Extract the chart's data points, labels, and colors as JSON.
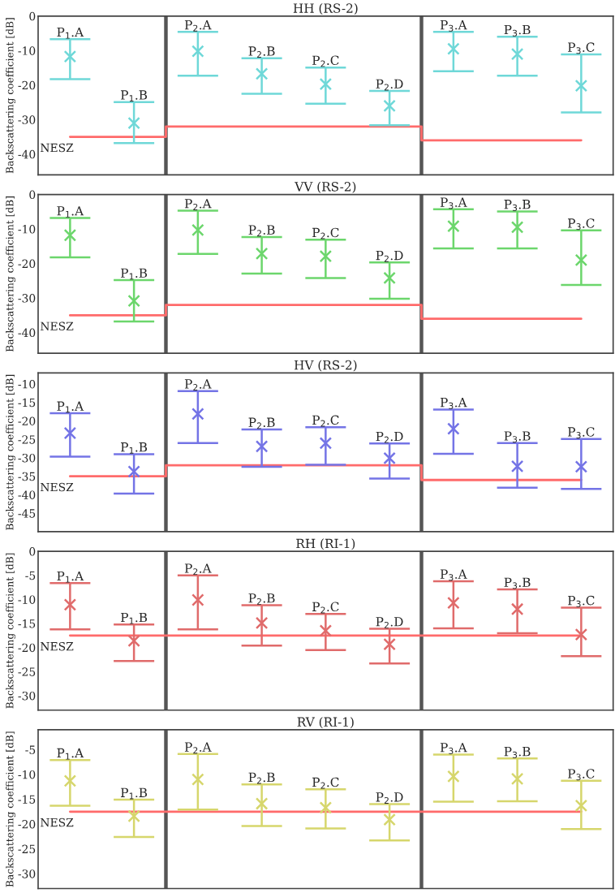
{
  "chart_data": [
    {
      "type": "scatter",
      "title": "HH (RS-2)",
      "ylabel": "Backscattering coefficient [dB]",
      "categories": [
        "P$_{1}$.A",
        "P$_{1}$.B",
        "P$_{2}$.A",
        "P$_{2}$.B",
        "P$_{2}$.C",
        "P$_{2}$.D",
        "P$_{3}$.A",
        "P$_{3}$.B",
        "P$_{3}$.C"
      ],
      "ylim": [
        -46,
        0
      ],
      "yticks": [
        0,
        -10,
        -20,
        -30,
        -40
      ],
      "tick_labels": "y",
      "grid": false,
      "series": [
        {
          "marker": "cross",
          "color": "#6fd8d8",
          "values": [
            -11.7,
            -31,
            -10.2,
            -16.7,
            -19.7,
            -26,
            -9.5,
            -11,
            -20.2
          ],
          "errors": [
            [
              -18.3,
              -6.7
            ],
            [
              -36.8,
              -24.9
            ],
            [
              -17.3,
              -4.6
            ],
            [
              -22.5,
              -12.2
            ],
            [
              -25.4,
              -14.9
            ],
            [
              -31.6,
              -21.7
            ],
            [
              -16,
              -4.6
            ],
            [
              -17.3,
              -6
            ],
            [
              -27.9,
              -11.1
            ]
          ]
        },
        {
          "type": "step",
          "name": "NESZ",
          "color": "#ff6b6b",
          "values": [
            -35,
            -35,
            -32,
            -32,
            -32,
            -32,
            -36,
            -36,
            -36
          ]
        }
      ]
    },
    {
      "type": "scatter",
      "title": "VV (RS-2)",
      "ylabel": "Backscattering coefficient [dB]",
      "categories": [
        "P$_{1}$.A",
        "P$_{1}$.B",
        "P$_{2}$.A",
        "P$_{2}$.B",
        "P$_{2}$.C",
        "P$_{2}$.D",
        "P$_{3}$.A",
        "P$_{3}$.B",
        "P$_{3}$.C"
      ],
      "ylim": [
        -46,
        0
      ],
      "yticks": [
        0,
        -10,
        -20,
        -30,
        -40
      ],
      "tick_labels": "y",
      "grid": false,
      "series": [
        {
          "marker": "cross",
          "color": "#6cd66c",
          "values": [
            -11.8,
            -30.8,
            -10.3,
            -17.1,
            -17.9,
            -24.2,
            -9.2,
            -9.5,
            -19
          ],
          "errors": [
            [
              -18.2,
              -6.8
            ],
            [
              -36.8,
              -24.8
            ],
            [
              -17.2,
              -4.7
            ],
            [
              -22.9,
              -12.3
            ],
            [
              -24.2,
              -13.1
            ],
            [
              -30.2,
              -19.7
            ],
            [
              -15.6,
              -4.3
            ],
            [
              -15.6,
              -4.9
            ],
            [
              -26.2,
              -10.4
            ]
          ]
        },
        {
          "type": "step",
          "name": "NESZ",
          "color": "#ff6b6b",
          "values": [
            -35,
            -35,
            -32,
            -32,
            -32,
            -32,
            -36,
            -36,
            -36
          ]
        }
      ]
    },
    {
      "type": "scatter",
      "title": "HV (RS-2)",
      "ylabel": "Backscattering coefficient [dB]",
      "categories": [
        "P$_{1}$.A",
        "P$_{1}$.B",
        "P$_{2}$.A",
        "P$_{2}$.B",
        "P$_{2}$.C",
        "P$_{2}$.D",
        "P$_{3}$.A",
        "P$_{3}$.B",
        "P$_{3}$.C"
      ],
      "ylim": [
        -50,
        -7
      ],
      "yticks": [
        -10,
        -15,
        -20,
        -25,
        -30,
        -35,
        -40,
        -45
      ],
      "tick_labels": "y",
      "grid": false,
      "series": [
        {
          "marker": "cross",
          "color": "#7474e6",
          "values": [
            -23.3,
            -33.7,
            -18.1,
            -26.9,
            -26,
            -30.1,
            -22.1,
            -32.3,
            -32.4
          ],
          "errors": [
            [
              -29.7,
              -17.9
            ],
            [
              -39.7,
              -29
            ],
            [
              -26,
              -11.9
            ],
            [
              -32.4,
              -22.3
            ],
            [
              -31.9,
              -21.7
            ],
            [
              -35.6,
              -26.1
            ],
            [
              -28.9,
              -16.9
            ],
            [
              -38.1,
              -26
            ],
            [
              -38.4,
              -24.9
            ]
          ]
        },
        {
          "type": "step",
          "name": "NESZ",
          "color": "#ff6b6b",
          "values": [
            -35,
            -35,
            -32,
            -32,
            -32,
            -32,
            -36,
            -36,
            -36
          ]
        }
      ]
    },
    {
      "type": "scatter",
      "title": "RH (RI-1)",
      "ylabel": "Backscattering coefficient [dB]",
      "categories": [
        "P$_{1}$.A",
        "P$_{1}$.B",
        "P$_{2}$.A",
        "P$_{2}$.B",
        "P$_{2}$.C",
        "P$_{2}$.D",
        "P$_{3}$.A",
        "P$_{3}$.B",
        "P$_{3}$.C"
      ],
      "ylim": [
        -33,
        0
      ],
      "yticks": [
        0,
        -5,
        -10,
        -15,
        -20,
        -25,
        -30
      ],
      "tick_labels": "y",
      "grid": false,
      "series": [
        {
          "marker": "cross",
          "color": "#e06b6b",
          "values": [
            -11.1,
            -18.6,
            -10.1,
            -14.9,
            -16.5,
            -19.3,
            -10.7,
            -12,
            -17.3
          ],
          "errors": [
            [
              -16.2,
              -6.6
            ],
            [
              -22.8,
              -15.2
            ],
            [
              -16.2,
              -5
            ],
            [
              -19.6,
              -11.2
            ],
            [
              -20.5,
              -13
            ],
            [
              -23.3,
              -16.1
            ],
            [
              -16,
              -6.2
            ],
            [
              -17,
              -7.9
            ],
            [
              -21.8,
              -11.7
            ]
          ]
        },
        {
          "type": "step",
          "name": "NESZ",
          "color": "#ff6b6b",
          "values": [
            -17.5,
            -17.5,
            -17.5,
            -17.5,
            -17.5,
            -17.5,
            -17.5,
            -17.5,
            -17.5
          ]
        }
      ]
    },
    {
      "type": "scatter",
      "title": "RV (RI-1)",
      "ylabel": "Backscattering coefficient [dB]",
      "categories": [
        "P$_{1}$.A",
        "P$_{1}$.B",
        "P$_{2}$.A",
        "P$_{2}$.B",
        "P$_{2}$.C",
        "P$_{2}$.D",
        "P$_{3}$.A",
        "P$_{3}$.B",
        "P$_{3}$.C"
      ],
      "ylim": [
        -33,
        -1
      ],
      "yticks": [
        -5,
        -10,
        -15,
        -20,
        -25,
        -30
      ],
      "tick_labels": "y",
      "grid": false,
      "series": [
        {
          "marker": "cross",
          "color": "#d6d66c",
          "values": [
            -11.3,
            -18.4,
            -11,
            -15.9,
            -16.7,
            -19.1,
            -10.4,
            -10.9,
            -16.3
          ],
          "errors": [
            [
              -16.3,
              -7.1
            ],
            [
              -22.6,
              -15.1
            ],
            [
              -17.1,
              -5.9
            ],
            [
              -20.4,
              -12
            ],
            [
              -20.9,
              -13
            ],
            [
              -23.3,
              -16
            ],
            [
              -15.5,
              -6
            ],
            [
              -15.4,
              -6.8
            ],
            [
              -21,
              -11.3
            ]
          ]
        },
        {
          "type": "step",
          "name": "NESZ",
          "color": "#ff6b6b",
          "values": [
            -17.5,
            -17.5,
            -17.5,
            -17.5,
            -17.5,
            -17.5,
            -17.5,
            -17.5,
            -17.5
          ]
        }
      ]
    }
  ]
}
